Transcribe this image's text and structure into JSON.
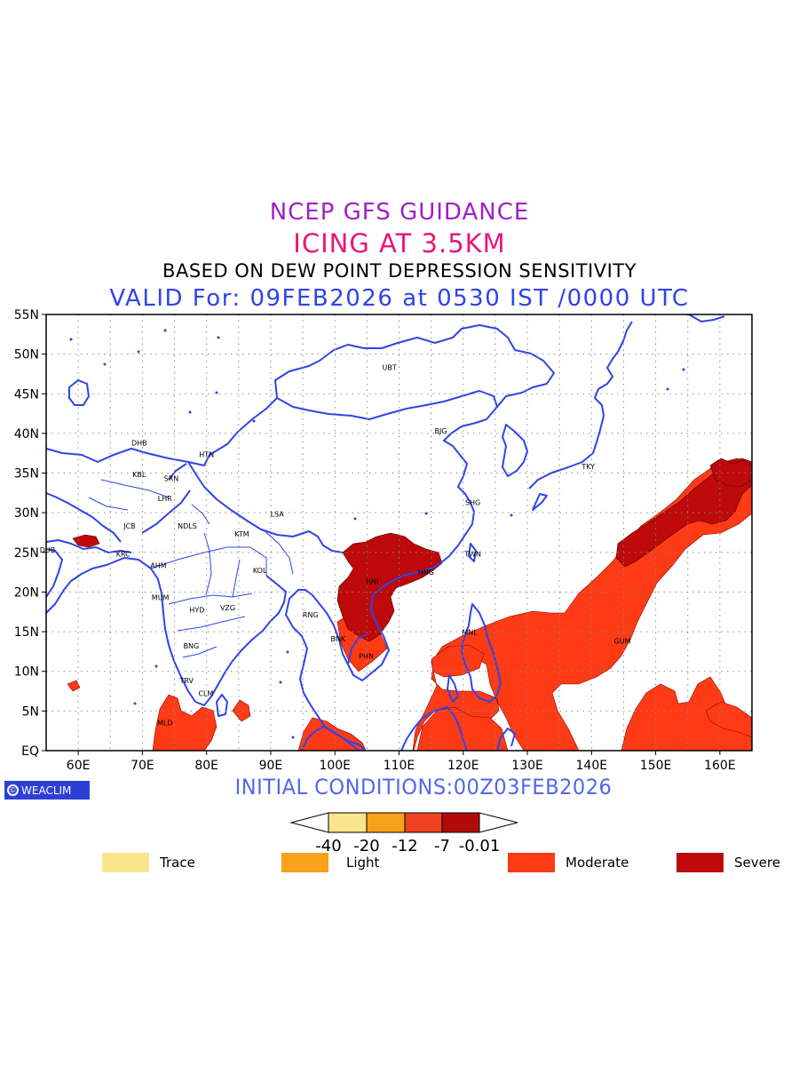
{
  "titles": {
    "line1": "NCEP GFS GUIDANCE",
    "line2": "ICING AT 3.5KM",
    "line3": "BASED ON DEW POINT DEPRESSION SENSITIVITY",
    "line4": "VALID For: 09FEB2026 at 0530 IST /0000 UTC"
  },
  "initial_conditions": "INITIAL CONDITIONS:00Z03FEB2026",
  "brand": "WEACLIM",
  "axes": {
    "lat_labels": [
      "55N",
      "50N",
      "45N",
      "40N",
      "35N",
      "30N",
      "25N",
      "20N",
      "15N",
      "10N",
      "5N",
      "EQ"
    ],
    "lon_labels": [
      "60E",
      "70E",
      "80E",
      "90E",
      "100E",
      "110E",
      "120E",
      "130E",
      "140E",
      "150E",
      "160E"
    ],
    "lon_range": [
      55,
      165
    ],
    "lat_range": [
      0,
      55
    ]
  },
  "cities": [
    {
      "code": "UBT",
      "lon": 108.5,
      "lat": 48.0
    },
    {
      "code": "BJG",
      "lon": 116.5,
      "lat": 40.0
    },
    {
      "code": "DHB",
      "lon": 69.5,
      "lat": 38.5
    },
    {
      "code": "HTN",
      "lon": 80.0,
      "lat": 37.0
    },
    {
      "code": "TKY",
      "lon": 139.5,
      "lat": 35.5
    },
    {
      "code": "KBL",
      "lon": 69.5,
      "lat": 34.5
    },
    {
      "code": "SRN",
      "lon": 74.5,
      "lat": 34.0
    },
    {
      "code": "SHG",
      "lon": 121.5,
      "lat": 31.0
    },
    {
      "code": "LHR",
      "lon": 73.5,
      "lat": 31.5
    },
    {
      "code": "LSA",
      "lon": 91.0,
      "lat": 29.5
    },
    {
      "code": "JCB",
      "lon": 68.0,
      "lat": 28.0
    },
    {
      "code": "NDLS",
      "lon": 77.0,
      "lat": 28.0
    },
    {
      "code": "KTM",
      "lon": 85.5,
      "lat": 27.0
    },
    {
      "code": "DUB",
      "lon": 55.2,
      "lat": 25.0
    },
    {
      "code": "KRC",
      "lon": 67.0,
      "lat": 24.5
    },
    {
      "code": "TWN",
      "lon": 121.5,
      "lat": 24.5
    },
    {
      "code": "AHM",
      "lon": 72.5,
      "lat": 23.0
    },
    {
      "code": "KOL",
      "lon": 88.3,
      "lat": 22.4
    },
    {
      "code": "HNG",
      "lon": 114.2,
      "lat": 22.2
    },
    {
      "code": "HNI",
      "lon": 105.8,
      "lat": 21.0
    },
    {
      "code": "MUM",
      "lon": 72.8,
      "lat": 19.0
    },
    {
      "code": "HYD",
      "lon": 78.5,
      "lat": 17.4
    },
    {
      "code": "VZG",
      "lon": 83.3,
      "lat": 17.7
    },
    {
      "code": "RNG",
      "lon": 96.2,
      "lat": 16.8
    },
    {
      "code": "MNL",
      "lon": 121.0,
      "lat": 14.6
    },
    {
      "code": "BNK",
      "lon": 100.5,
      "lat": 13.8
    },
    {
      "code": "GUM",
      "lon": 144.8,
      "lat": 13.5
    },
    {
      "code": "BNG",
      "lon": 77.6,
      "lat": 12.9
    },
    {
      "code": "PHN",
      "lon": 104.9,
      "lat": 11.6
    },
    {
      "code": "TRV",
      "lon": 76.9,
      "lat": 8.5
    },
    {
      "code": "CLM",
      "lon": 79.9,
      "lat": 6.9
    },
    {
      "code": "MLD",
      "lon": 73.5,
      "lat": 3.2
    }
  ],
  "colorbar": {
    "ticks": [
      "-40",
      "-20",
      "-12",
      "-7",
      "-0.01"
    ],
    "colors": [
      "#fbe58c",
      "#f7a21a",
      "#ef4120",
      "#b20a0a"
    ]
  },
  "legend": [
    {
      "label": "Trace",
      "color": "#fbe58c"
    },
    {
      "label": "Light",
      "color": "#f7a21a"
    },
    {
      "label": "Moderate",
      "color": "#ff3b16"
    },
    {
      "label": "Severe",
      "color": "#be0a0a"
    }
  ],
  "colors": {
    "coastline": "#2e44e8",
    "moderate": "#ff3b16",
    "severe": "#be0a0a"
  }
}
